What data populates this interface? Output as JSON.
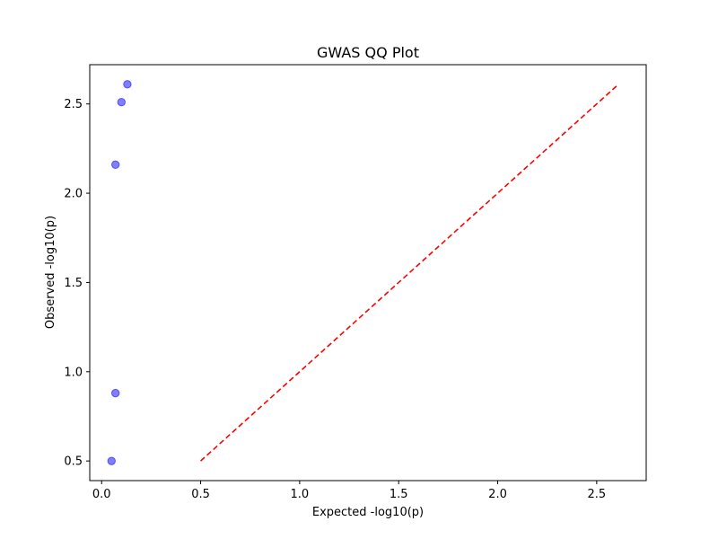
{
  "chart_data": {
    "type": "scatter",
    "title": "GWAS QQ Plot",
    "xlabel": "Expected -log10(p)",
    "ylabel": "Observed -log10(p)",
    "xlim": [
      -0.06,
      2.75
    ],
    "ylim": [
      0.39,
      2.72
    ],
    "xticks": [
      0.0,
      0.5,
      1.0,
      1.5,
      2.0,
      2.5
    ],
    "xtick_labels": [
      "0.0",
      "0.5",
      "1.0",
      "1.5",
      "2.0",
      "2.5"
    ],
    "yticks": [
      0.5,
      1.0,
      1.5,
      2.0,
      2.5
    ],
    "ytick_labels": [
      "0.5",
      "1.0",
      "1.5",
      "2.0",
      "2.5"
    ],
    "grid": false,
    "series": [
      {
        "kind": "points",
        "color": "#0000ff",
        "x": [
          0.05,
          0.07,
          0.07,
          0.1,
          0.13
        ],
        "y": [
          0.5,
          0.88,
          2.16,
          2.51,
          2.61
        ]
      },
      {
        "kind": "line",
        "style": "dashed",
        "color": "#ff0000",
        "x": [
          0.5,
          2.61
        ],
        "y": [
          0.5,
          2.61
        ]
      }
    ]
  }
}
